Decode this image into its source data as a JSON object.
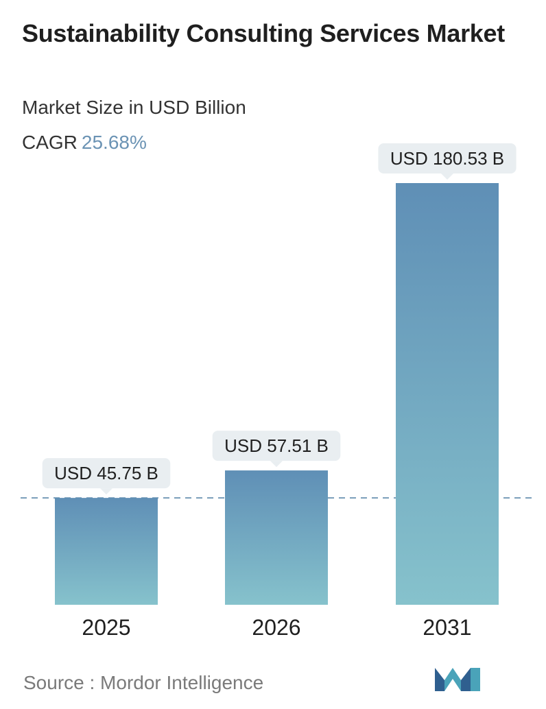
{
  "title": "Sustainability Consulting Services Market",
  "subtitle": "Market Size in USD Billion",
  "cagr_label": "CAGR",
  "cagr_value": "25.68%",
  "source": "Source :  Mordor Intelligence",
  "logo": {
    "icon": "mordor-intelligence-logo",
    "colors": [
      "#2f5f8f",
      "#4aa3b9"
    ]
  },
  "colors": {
    "bar_top": "#5f8fb6",
    "bar_bottom": "#86c2cc",
    "callout_bg": "#e9eef1",
    "dashed_line": "#4f7fa3",
    "cagr": "#6b93b4"
  },
  "chart_data": {
    "type": "bar",
    "title": "Sustainability Consulting Services Market",
    "subtitle": "Market Size in USD Billion",
    "categories": [
      "2025",
      "2026",
      "2031"
    ],
    "values": [
      45.75,
      57.51,
      180.53
    ],
    "data_labels": [
      "USD 45.75 B",
      "USD 57.51 B",
      "USD 180.53 B"
    ],
    "ylabel": "",
    "xlabel": "",
    "ylim": [
      0,
      180.53
    ],
    "grid": false,
    "legend": "none",
    "reference_line": "dashed horizontal at 2025 value"
  }
}
